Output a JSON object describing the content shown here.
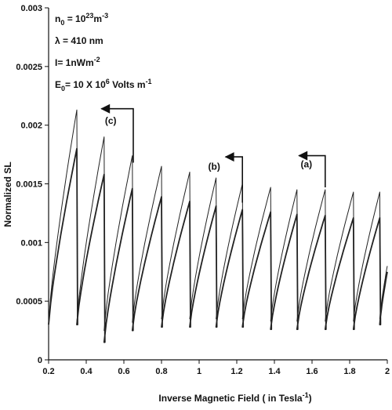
{
  "chart_data": {
    "type": "line",
    "xlabel": "Inverse Magnetic Field ( in Tesla",
    "xlabel_sup": "-1",
    "xlabel_close": ")",
    "ylabel": "Normalized SL",
    "xlim": [
      0.2,
      2.0
    ],
    "ylim": [
      0,
      0.003
    ],
    "x_ticks": [
      "0.2",
      "0.4",
      "0.6",
      "0.8",
      "1",
      "1.2",
      "1.4",
      "1.6",
      "1.8",
      "2"
    ],
    "y_ticks": [
      "0",
      "0.0005",
      "0.001",
      "0.0015",
      "0.002",
      "0.0025",
      "0.003"
    ],
    "grid": false,
    "parameters": [
      {
        "base": "n",
        "sub": "0",
        "mid": " = 10",
        "sup1": "23",
        "rest": "m",
        "sup2": "-3"
      },
      {
        "base": "λ = 410 nm",
        "sub": "",
        "mid": "",
        "sup1": "",
        "rest": "",
        "sup2": ""
      },
      {
        "base": "I= 1nWm",
        "sub": "",
        "mid": "",
        "sup1": "-2",
        "rest": "",
        "sup2": ""
      },
      {
        "base": "E",
        "sub": "0",
        "mid": "= 10 X 10",
        "sup1": "6",
        "rest": " Volts m",
        "sup2": "-1"
      }
    ],
    "annotations": [
      {
        "label": "(a)",
        "arrow_from": [
          1.67,
          0.00147
        ],
        "arrow_to": [
          1.53,
          0.00174
        ],
        "text_at": [
          1.57,
          0.00164
        ]
      },
      {
        "label": "(b)",
        "arrow_from": [
          1.23,
          0.00134
        ],
        "arrow_to": [
          1.14,
          0.00173
        ],
        "text_at": [
          1.08,
          0.00162
        ]
      },
      {
        "label": "(c)",
        "arrow_from": [
          0.65,
          0.00168
        ],
        "arrow_to": [
          0.48,
          0.00214
        ],
        "text_at": [
          0.53,
          0.00201
        ]
      }
    ],
    "series": [
      {
        "stroke": 1.0,
        "peaks": [
          [
            0.2,
            0.00032,
            0.35,
            0.00213
          ],
          [
            0.35,
            0.00032,
            0.495,
            0.0019
          ],
          [
            0.495,
            0.00025,
            0.645,
            0.00174
          ],
          [
            0.645,
            0.00032,
            0.8,
            0.00165
          ],
          [
            0.8,
            0.00035,
            0.95,
            0.0016
          ],
          [
            0.95,
            0.00035,
            1.09,
            0.00155
          ],
          [
            1.09,
            0.00035,
            1.23,
            0.0015
          ],
          [
            1.23,
            0.00035,
            1.38,
            0.00147
          ],
          [
            1.38,
            0.00033,
            1.52,
            0.00145
          ],
          [
            1.52,
            0.00033,
            1.67,
            0.00145
          ],
          [
            1.67,
            0.00033,
            1.82,
            0.00143
          ],
          [
            1.82,
            0.00033,
            1.96,
            0.00143
          ],
          [
            1.96,
            0.00035,
            2.0,
            0.0008
          ]
        ]
      },
      {
        "stroke": 1.8,
        "peaks": [
          [
            0.2,
            0.0003,
            0.35,
            0.0018
          ],
          [
            0.35,
            0.0003,
            0.495,
            0.00158
          ],
          [
            0.495,
            0.00015,
            0.645,
            0.00146
          ],
          [
            0.645,
            0.00025,
            0.8,
            0.00139
          ],
          [
            0.8,
            0.00028,
            0.95,
            0.00135
          ],
          [
            0.95,
            0.00028,
            1.09,
            0.00131
          ],
          [
            1.09,
            0.00028,
            1.23,
            0.00128
          ],
          [
            1.23,
            0.00028,
            1.38,
            0.00126
          ],
          [
            1.38,
            0.00026,
            1.52,
            0.00124
          ],
          [
            1.52,
            0.00026,
            1.67,
            0.00123
          ],
          [
            1.67,
            0.00026,
            1.82,
            0.00121
          ],
          [
            1.82,
            0.00026,
            1.96,
            0.00121
          ],
          [
            1.96,
            0.0003,
            2.0,
            0.00075
          ]
        ]
      }
    ]
  }
}
